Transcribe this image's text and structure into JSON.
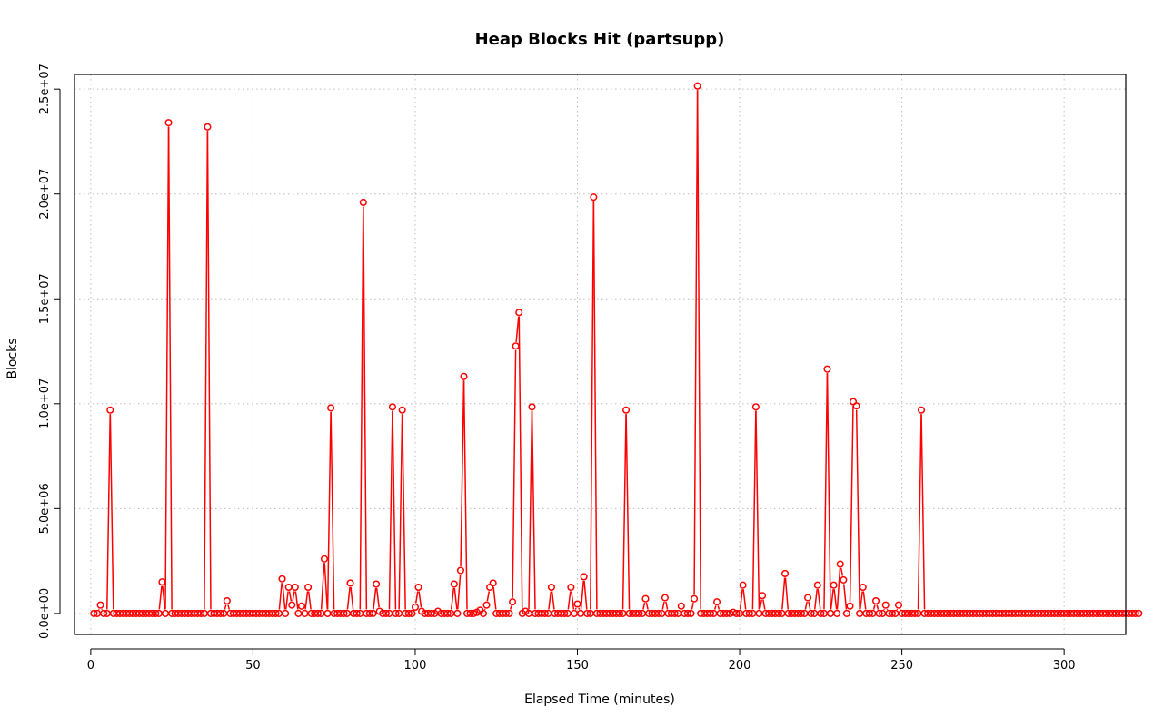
{
  "chart_data": {
    "type": "line",
    "title": "Heap Blocks Hit (partsupp)",
    "xlabel": "Elapsed Time (minutes)",
    "ylabel": "Blocks",
    "xlim": [
      -5,
      319
    ],
    "ylim": [
      -1000000,
      25700000
    ],
    "xticks": [
      {
        "value": 0,
        "label": "0"
      },
      {
        "value": 50,
        "label": "50"
      },
      {
        "value": 100,
        "label": "100"
      },
      {
        "value": 150,
        "label": "150"
      },
      {
        "value": 200,
        "label": "200"
      },
      {
        "value": 250,
        "label": "250"
      },
      {
        "value": 300,
        "label": "300"
      }
    ],
    "yticks": [
      {
        "value": 0,
        "label": "0.0e+00"
      },
      {
        "value": 5000000,
        "label": "5.0e+06"
      },
      {
        "value": 10000000,
        "label": "1.0e+07"
      },
      {
        "value": 15000000,
        "label": "1.5e+07"
      },
      {
        "value": 20000000,
        "label": "2.0e+07"
      },
      {
        "value": 25000000,
        "label": "2.5e+07"
      }
    ],
    "grid": true,
    "line_color": "#ff0000",
    "marker": "open-circle",
    "series": [
      {
        "x_start": 1,
        "x_step": 1,
        "values": [
          0,
          0,
          400000,
          0,
          0,
          9700000,
          0,
          0,
          0,
          0,
          0,
          0,
          0,
          0,
          0,
          0,
          0,
          0,
          0,
          0,
          0,
          1500000,
          0,
          23400000,
          0,
          0,
          0,
          0,
          0,
          0,
          0,
          0,
          0,
          0,
          0,
          23200000,
          0,
          0,
          0,
          0,
          0,
          600000,
          0,
          0,
          0,
          0,
          0,
          0,
          0,
          0,
          0,
          0,
          0,
          0,
          0,
          0,
          0,
          0,
          1650000,
          0,
          1250000,
          400000,
          1250000,
          0,
          350000,
          0,
          1250000,
          0,
          0,
          0,
          0,
          2600000,
          0,
          9800000,
          0,
          0,
          0,
          0,
          0,
          1450000,
          0,
          0,
          0,
          19600000,
          0,
          0,
          0,
          1400000,
          100000,
          0,
          0,
          0,
          9850000,
          0,
          0,
          9700000,
          0,
          0,
          0,
          300000,
          1250000,
          100000,
          0,
          0,
          0,
          0,
          100000,
          0,
          0,
          0,
          0,
          1400000,
          0,
          2050000,
          11300000,
          0,
          0,
          0,
          50000,
          150000,
          0,
          400000,
          1250000,
          1450000,
          0,
          0,
          0,
          0,
          0,
          550000,
          12750000,
          14350000,
          0,
          100000,
          0,
          9850000,
          0,
          0,
          0,
          0,
          0,
          1250000,
          0,
          0,
          0,
          0,
          0,
          1250000,
          0,
          450000,
          0,
          1750000,
          0,
          0,
          19850000,
          0,
          0,
          0,
          0,
          0,
          0,
          0,
          0,
          0,
          9700000,
          0,
          0,
          0,
          0,
          0,
          700000,
          0,
          0,
          0,
          0,
          0,
          750000,
          0,
          0,
          0,
          0,
          350000,
          0,
          0,
          0,
          700000,
          25150000,
          0,
          0,
          0,
          0,
          0,
          550000,
          0,
          0,
          0,
          0,
          50000,
          0,
          0,
          1350000,
          0,
          0,
          0,
          9850000,
          0,
          850000,
          0,
          0,
          0,
          0,
          0,
          0,
          1900000,
          0,
          0,
          0,
          0,
          0,
          0,
          750000,
          0,
          0,
          1350000,
          0,
          0,
          11650000,
          0,
          1350000,
          0,
          2350000,
          1600000,
          0,
          350000,
          10100000,
          9900000,
          0,
          1250000,
          0,
          0,
          0,
          600000,
          0,
          0,
          400000,
          0,
          0,
          0,
          400000,
          0,
          0,
          0,
          0,
          0,
          0,
          9700000,
          0,
          0,
          0,
          0,
          0,
          0,
          0,
          0,
          0,
          0,
          0,
          0,
          0,
          0,
          0,
          0,
          0,
          0,
          0,
          0,
          0,
          0,
          0,
          0,
          0,
          0,
          0,
          0,
          0,
          0,
          0,
          0,
          0,
          0,
          0,
          0,
          0,
          0,
          0,
          0,
          0,
          0,
          0,
          0,
          0,
          0,
          0,
          0,
          0,
          0,
          0,
          0,
          0,
          0,
          0,
          0,
          0,
          0,
          0,
          0,
          0,
          0,
          0,
          0,
          0,
          0,
          0
        ]
      }
    ]
  }
}
